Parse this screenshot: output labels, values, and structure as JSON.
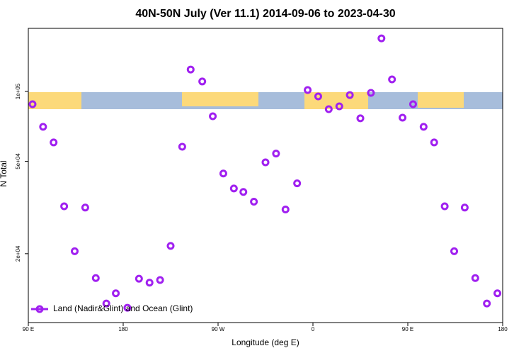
{
  "chart_data": {
    "type": "scatter",
    "title": "40N-50N July (Ver 11.1)   2014-09-06 to 2023-04-30",
    "xlabel": "Longitude (deg E)",
    "ylabel": "N Total",
    "x": [
      94,
      104,
      114,
      124,
      134,
      144,
      154,
      164,
      173,
      184,
      195,
      205,
      215,
      225,
      236,
      244,
      255,
      265,
      275,
      285,
      294,
      304,
      315,
      325,
      334,
      345,
      355,
      365,
      375,
      385,
      395,
      405,
      415,
      425,
      435,
      445,
      455,
      465,
      475,
      485,
      494,
      504,
      514,
      525,
      535
    ],
    "series": [
      {
        "name": "Land (Nadir&Glint) and Ocean (Glint)",
        "color": "#a020f0",
        "values": [
          88100,
          70400,
          60300,
          32000,
          20500,
          31600,
          15700,
          12200,
          13500,
          11700,
          15600,
          15000,
          15400,
          21600,
          57800,
          124300,
          110400,
          78200,
          44300,
          38200,
          36900,
          33500,
          49500,
          54000,
          31000,
          40200,
          101400,
          95200,
          83900,
          86300,
          96500,
          76600,
          98600,
          169300,
          112700,
          77100,
          88100,
          70400,
          60300,
          32000,
          20500,
          31600,
          15700,
          12200,
          13500
        ]
      }
    ],
    "xlim": [
      90,
      540
    ],
    "xticks": [
      {
        "value": 90,
        "label": "90 E"
      },
      {
        "value": 180,
        "label": "180"
      },
      {
        "value": 270,
        "label": "90 W"
      },
      {
        "value": 360,
        "label": "0"
      },
      {
        "value": 450,
        "label": "90 E"
      },
      {
        "value": 540,
        "label": "180"
      }
    ],
    "ylim": [
      10100,
      187000
    ],
    "yticks": [
      {
        "value": 20000,
        "label": "2e+04"
      },
      {
        "value": 50000,
        "label": "5e+04"
      },
      {
        "value": 100000,
        "label": "1e+05"
      }
    ],
    "ylog": true,
    "legend": "bottom-left"
  }
}
